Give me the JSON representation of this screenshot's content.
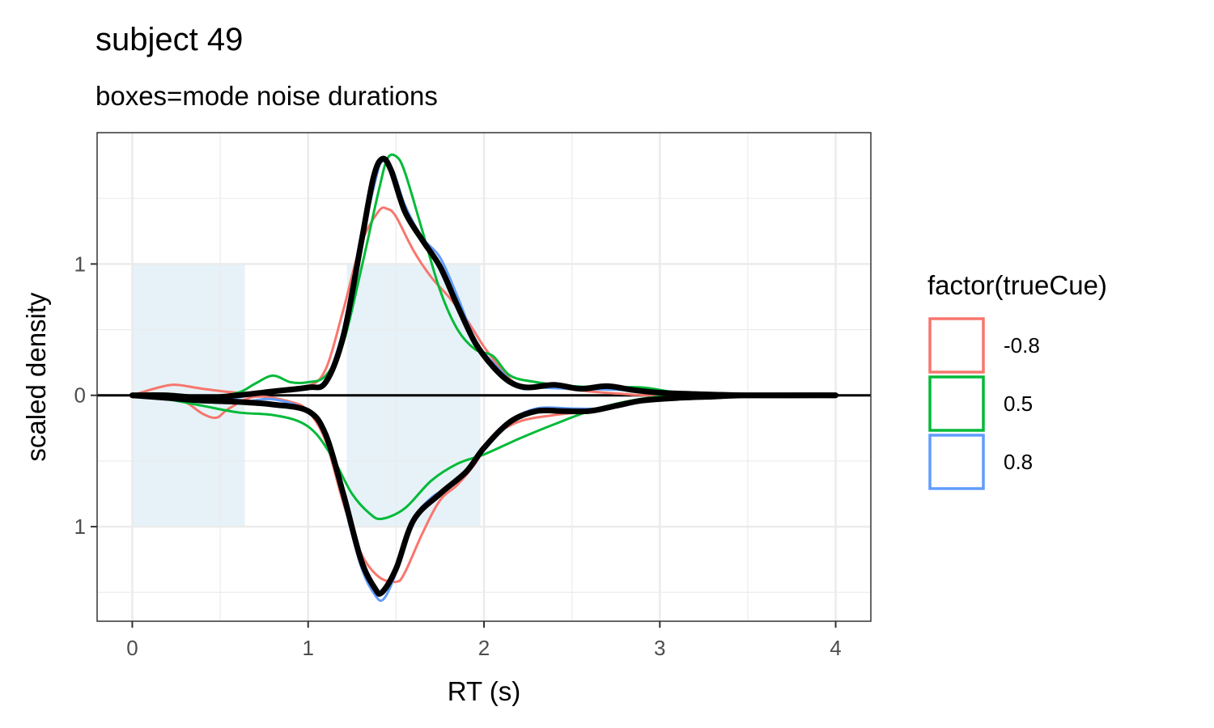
{
  "chart_data": {
    "type": "line",
    "title": "subject 49",
    "subtitle": "boxes=mode noise durations",
    "xlabel": "RT (s)",
    "ylabel": "scaled density",
    "xlim": [
      -0.2,
      4.2
    ],
    "ylim": [
      -1.72,
      2.0
    ],
    "x_ticks": [
      0,
      1,
      2,
      3,
      4
    ],
    "x_tick_labels": [
      "0",
      "1",
      "2",
      "3",
      "4"
    ],
    "y_ticks": [
      1,
      0,
      -1
    ],
    "y_tick_labels": [
      "1",
      "0",
      "1"
    ],
    "grid": true,
    "legend_position": "right",
    "legend_title": "factor(trueCue)",
    "zero_line": 0,
    "boxes": [
      {
        "x0": 0.0,
        "x1": 0.64,
        "y0": -1.0,
        "y1": 1.0
      },
      {
        "x0": 1.22,
        "x1": 1.98,
        "y0": -1.0,
        "y1": 1.0
      }
    ],
    "box_color": "#e6f2f7",
    "series": [
      {
        "name": "-0.8",
        "color": "#F8766D",
        "width": 3,
        "upper": [
          [
            0,
            0
          ],
          [
            0.15,
            0.06
          ],
          [
            0.25,
            0.08
          ],
          [
            0.4,
            0.05
          ],
          [
            0.6,
            0.02
          ],
          [
            0.8,
            0.02
          ],
          [
            1.0,
            0.07
          ],
          [
            1.1,
            0.2
          ],
          [
            1.2,
            0.65
          ],
          [
            1.3,
            1.15
          ],
          [
            1.4,
            1.4
          ],
          [
            1.45,
            1.42
          ],
          [
            1.5,
            1.36
          ],
          [
            1.6,
            1.1
          ],
          [
            1.7,
            0.9
          ],
          [
            1.8,
            0.75
          ],
          [
            1.9,
            0.58
          ],
          [
            2.0,
            0.37
          ],
          [
            2.1,
            0.2
          ],
          [
            2.2,
            0.08
          ],
          [
            2.4,
            0.06
          ],
          [
            2.6,
            0.03
          ],
          [
            2.8,
            0.01
          ],
          [
            3.0,
            0.0
          ],
          [
            4.0,
            0.0
          ]
        ],
        "lower": [
          [
            0,
            0
          ],
          [
            0.2,
            -0.02
          ],
          [
            0.3,
            -0.05
          ],
          [
            0.4,
            -0.14
          ],
          [
            0.48,
            -0.17
          ],
          [
            0.55,
            -0.1
          ],
          [
            0.7,
            -0.01
          ],
          [
            0.9,
            -0.05
          ],
          [
            1.0,
            -0.12
          ],
          [
            1.1,
            -0.35
          ],
          [
            1.2,
            -0.82
          ],
          [
            1.3,
            -1.2
          ],
          [
            1.4,
            -1.38
          ],
          [
            1.5,
            -1.42
          ],
          [
            1.55,
            -1.35
          ],
          [
            1.65,
            -1.05
          ],
          [
            1.75,
            -0.8
          ],
          [
            1.85,
            -0.68
          ],
          [
            1.95,
            -0.52
          ],
          [
            2.05,
            -0.32
          ],
          [
            2.2,
            -0.2
          ],
          [
            2.4,
            -0.15
          ],
          [
            2.6,
            -0.12
          ],
          [
            2.8,
            -0.06
          ],
          [
            3.0,
            -0.02
          ],
          [
            3.2,
            -0.01
          ],
          [
            4.0,
            0.0
          ]
        ]
      },
      {
        "name": "0.5",
        "color": "#00BA38",
        "width": 3,
        "upper": [
          [
            0,
            0
          ],
          [
            0.2,
            0.0
          ],
          [
            0.4,
            -0.02
          ],
          [
            0.6,
            0.02
          ],
          [
            0.7,
            0.09
          ],
          [
            0.8,
            0.15
          ],
          [
            0.9,
            0.1
          ],
          [
            1.0,
            0.1
          ],
          [
            1.1,
            0.15
          ],
          [
            1.2,
            0.4
          ],
          [
            1.3,
            0.95
          ],
          [
            1.4,
            1.55
          ],
          [
            1.45,
            1.8
          ],
          [
            1.5,
            1.82
          ],
          [
            1.55,
            1.7
          ],
          [
            1.65,
            1.25
          ],
          [
            1.75,
            0.8
          ],
          [
            1.85,
            0.5
          ],
          [
            1.95,
            0.35
          ],
          [
            2.05,
            0.3
          ],
          [
            2.15,
            0.15
          ],
          [
            2.3,
            0.1
          ],
          [
            2.5,
            0.07
          ],
          [
            2.7,
            0.06
          ],
          [
            2.9,
            0.06
          ],
          [
            3.1,
            0.02
          ],
          [
            3.3,
            0.0
          ],
          [
            4.0,
            0.0
          ]
        ],
        "lower": [
          [
            0,
            0
          ],
          [
            0.2,
            -0.03
          ],
          [
            0.4,
            -0.08
          ],
          [
            0.6,
            -0.13
          ],
          [
            0.8,
            -0.15
          ],
          [
            0.95,
            -0.2
          ],
          [
            1.05,
            -0.3
          ],
          [
            1.15,
            -0.5
          ],
          [
            1.25,
            -0.75
          ],
          [
            1.35,
            -0.9
          ],
          [
            1.42,
            -0.94
          ],
          [
            1.55,
            -0.86
          ],
          [
            1.7,
            -0.65
          ],
          [
            1.85,
            -0.52
          ],
          [
            2.0,
            -0.45
          ],
          [
            2.2,
            -0.33
          ],
          [
            2.4,
            -0.22
          ],
          [
            2.6,
            -0.12
          ],
          [
            2.8,
            -0.05
          ],
          [
            3.0,
            -0.01
          ],
          [
            3.2,
            0.0
          ],
          [
            4.0,
            0.0
          ]
        ]
      },
      {
        "name": "0.8",
        "color": "#619CFF",
        "width": 3,
        "upper": [
          [
            0,
            0
          ],
          [
            0.2,
            0.0
          ],
          [
            0.5,
            -0.03
          ],
          [
            0.8,
            0.03
          ],
          [
            1.0,
            0.06
          ],
          [
            1.1,
            0.12
          ],
          [
            1.2,
            0.5
          ],
          [
            1.3,
            1.15
          ],
          [
            1.38,
            1.62
          ],
          [
            1.42,
            1.78
          ],
          [
            1.48,
            1.72
          ],
          [
            1.55,
            1.45
          ],
          [
            1.65,
            1.2
          ],
          [
            1.75,
            1.05
          ],
          [
            1.85,
            0.75
          ],
          [
            1.95,
            0.42
          ],
          [
            2.05,
            0.25
          ],
          [
            2.2,
            0.06
          ],
          [
            2.3,
            0.06
          ],
          [
            2.5,
            0.05
          ],
          [
            2.8,
            0.04
          ],
          [
            3.0,
            0.02
          ],
          [
            3.4,
            0.0
          ],
          [
            4.0,
            0.0
          ]
        ],
        "lower": [
          [
            0,
            0
          ],
          [
            0.3,
            -0.01
          ],
          [
            0.6,
            -0.05
          ],
          [
            0.8,
            -0.03
          ],
          [
            1.0,
            -0.12
          ],
          [
            1.1,
            -0.3
          ],
          [
            1.2,
            -0.8
          ],
          [
            1.3,
            -1.3
          ],
          [
            1.38,
            -1.52
          ],
          [
            1.43,
            -1.55
          ],
          [
            1.5,
            -1.35
          ],
          [
            1.6,
            -0.95
          ],
          [
            1.7,
            -0.78
          ],
          [
            1.85,
            -0.65
          ],
          [
            2.0,
            -0.42
          ],
          [
            2.15,
            -0.2
          ],
          [
            2.3,
            -0.1
          ],
          [
            2.5,
            -0.1
          ],
          [
            2.7,
            -0.1
          ],
          [
            2.9,
            -0.05
          ],
          [
            3.1,
            -0.02
          ],
          [
            3.4,
            0.0
          ],
          [
            4.0,
            0.0
          ]
        ]
      },
      {
        "name": "",
        "color": "#000000",
        "width": 7,
        "upper": [
          [
            0,
            0
          ],
          [
            0.2,
            0.0
          ],
          [
            0.4,
            -0.02
          ],
          [
            0.6,
            0.0
          ],
          [
            0.8,
            0.03
          ],
          [
            1.0,
            0.06
          ],
          [
            1.1,
            0.1
          ],
          [
            1.2,
            0.45
          ],
          [
            1.3,
            1.15
          ],
          [
            1.37,
            1.65
          ],
          [
            1.42,
            1.8
          ],
          [
            1.47,
            1.72
          ],
          [
            1.55,
            1.4
          ],
          [
            1.65,
            1.18
          ],
          [
            1.75,
            0.98
          ],
          [
            1.85,
            0.68
          ],
          [
            1.95,
            0.4
          ],
          [
            2.05,
            0.22
          ],
          [
            2.15,
            0.1
          ],
          [
            2.25,
            0.06
          ],
          [
            2.4,
            0.08
          ],
          [
            2.55,
            0.05
          ],
          [
            2.7,
            0.07
          ],
          [
            2.85,
            0.04
          ],
          [
            3.0,
            0.02
          ],
          [
            3.2,
            0.01
          ],
          [
            3.5,
            0.0
          ],
          [
            4.0,
            0.0
          ]
        ],
        "lower": [
          [
            0,
            0
          ],
          [
            0.2,
            -0.02
          ],
          [
            0.4,
            -0.04
          ],
          [
            0.6,
            -0.05
          ],
          [
            0.8,
            -0.07
          ],
          [
            1.0,
            -0.12
          ],
          [
            1.1,
            -0.3
          ],
          [
            1.2,
            -0.75
          ],
          [
            1.3,
            -1.25
          ],
          [
            1.38,
            -1.47
          ],
          [
            1.42,
            -1.5
          ],
          [
            1.5,
            -1.32
          ],
          [
            1.6,
            -0.95
          ],
          [
            1.75,
            -0.75
          ],
          [
            1.9,
            -0.58
          ],
          [
            2.0,
            -0.4
          ],
          [
            2.15,
            -0.2
          ],
          [
            2.3,
            -0.12
          ],
          [
            2.45,
            -0.12
          ],
          [
            2.6,
            -0.12
          ],
          [
            2.75,
            -0.08
          ],
          [
            2.9,
            -0.04
          ],
          [
            3.1,
            -0.02
          ],
          [
            3.3,
            -0.01
          ],
          [
            3.5,
            0.0
          ],
          [
            4.0,
            0.0
          ]
        ]
      }
    ]
  }
}
